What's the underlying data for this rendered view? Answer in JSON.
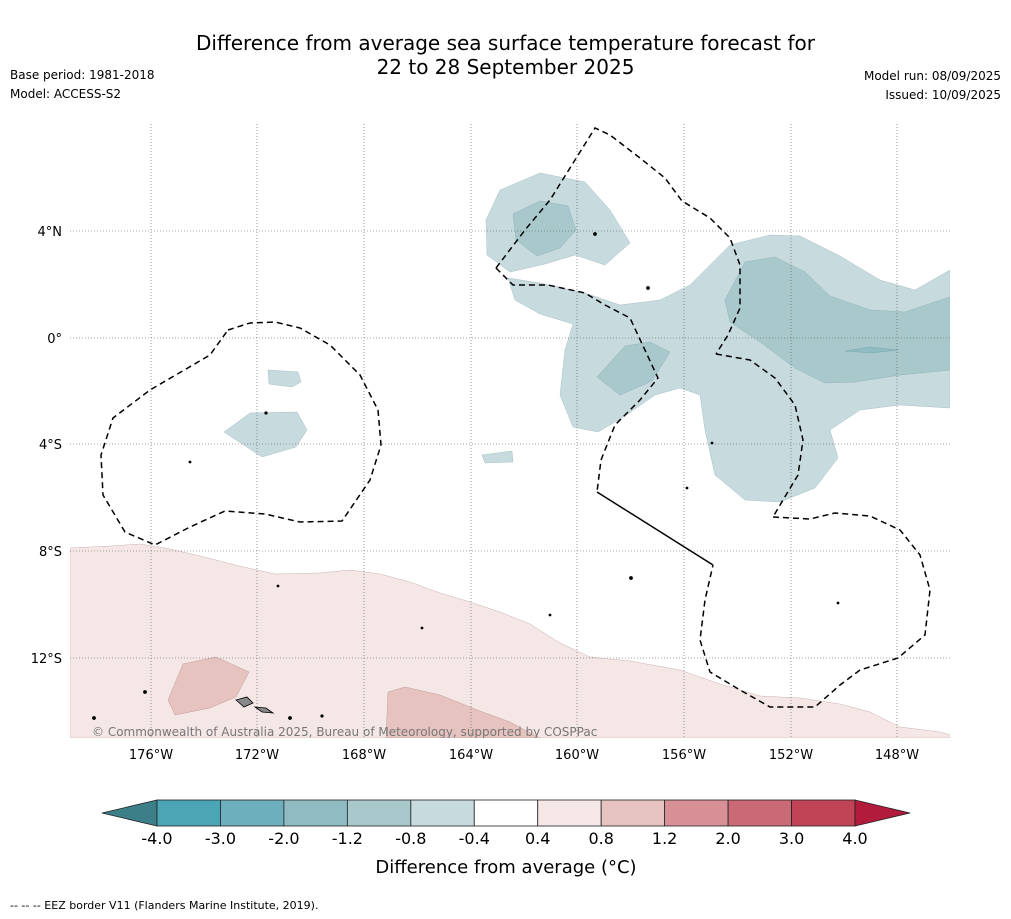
{
  "title_line1": "Difference from average sea surface temperature forecast for",
  "title_line2": "22 to 28 September 2025",
  "meta_left": {
    "base_period": "Base period: 1981-2018",
    "model": "Model: ACCESS-S2"
  },
  "meta_right": {
    "model_run": "Model run: 08/09/2025",
    "issued": "Issued: 10/09/2025"
  },
  "map": {
    "lat_labels": [
      "4°N",
      "0°",
      "4°S",
      "8°S",
      "12°S"
    ],
    "lon_labels": [
      "176°W",
      "172°W",
      "168°W",
      "164°W",
      "160°W",
      "156°W",
      "152°W",
      "148°W"
    ],
    "copyright": "© Commonwealth of Australia 2025, Bureau of Meteorology, supported by COSPPac"
  },
  "colorbar": {
    "ticks": [
      "-4.0",
      "-3.0",
      "-2.0",
      "-1.2",
      "-0.8",
      "-0.4",
      "0.4",
      "0.8",
      "1.2",
      "2.0",
      "3.0",
      "4.0"
    ],
    "colors": [
      "#4ba5b4",
      "#6dafbc",
      "#8fbbc2",
      "#a9c8cc",
      "#c7dadd",
      "#ffffff",
      "#f4e7e6",
      "#e6c3bf",
      "#d89096",
      "#ca6a76",
      "#c04455"
    ],
    "extend_low_color": "#3d7f88",
    "extend_high_color": "#b31b3c",
    "label": "Difference from average (°C)"
  },
  "footer": "--  --  -- EEZ border V11 (Flanders Marine Institute, 2019)."
}
